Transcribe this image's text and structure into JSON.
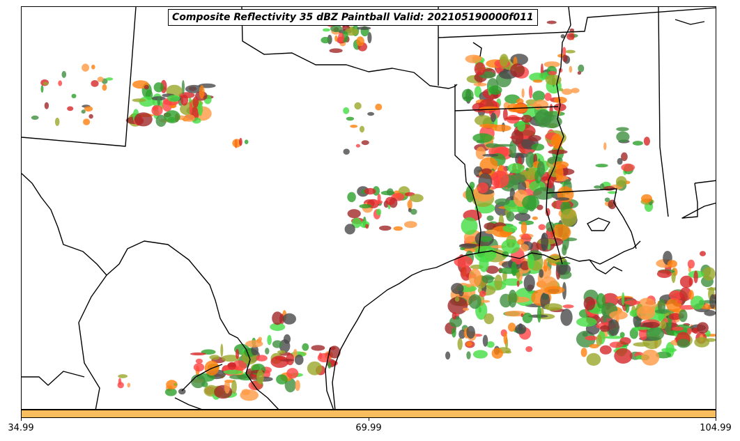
{
  "map": {
    "title": "Composite Reflectivity 35 dBZ Paintball Valid: 202105190000f011",
    "paintball_colors": [
      "#d62728",
      "#ff7f0e",
      "#ff4444",
      "#2ca02c",
      "#44dd44",
      "#9aa82a",
      "#a02828",
      "#4a4a4a",
      "#ff9a44",
      "#3f8f3f"
    ]
  },
  "colorbar": {
    "color": "#f8bd5c",
    "ticks": [
      "34.99",
      "69.99",
      "104.99"
    ]
  }
}
